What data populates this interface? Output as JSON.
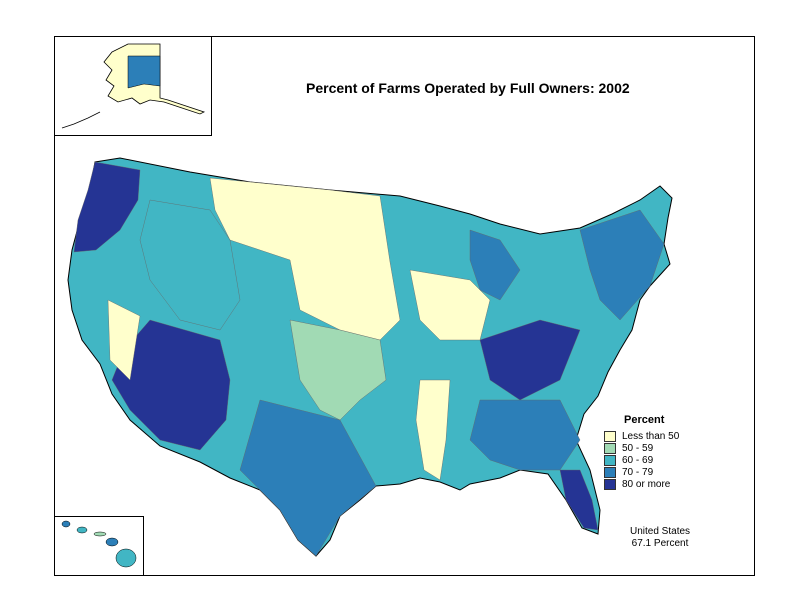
{
  "map": {
    "title": "Percent of Farms Operated by Full Owners:  2002"
  },
  "legend": {
    "title": "Percent",
    "items": [
      {
        "label": "Less than 50",
        "color": "#ffffcc"
      },
      {
        "label": "50 - 59",
        "color": "#a1dab4"
      },
      {
        "label": "60 - 69",
        "color": "#41b6c4"
      },
      {
        "label": "70 - 79",
        "color": "#2c7fb8"
      },
      {
        "label": "80 or more",
        "color": "#253494"
      }
    ]
  },
  "summary": {
    "line1": "United States",
    "line2": "67.1 Percent"
  }
}
